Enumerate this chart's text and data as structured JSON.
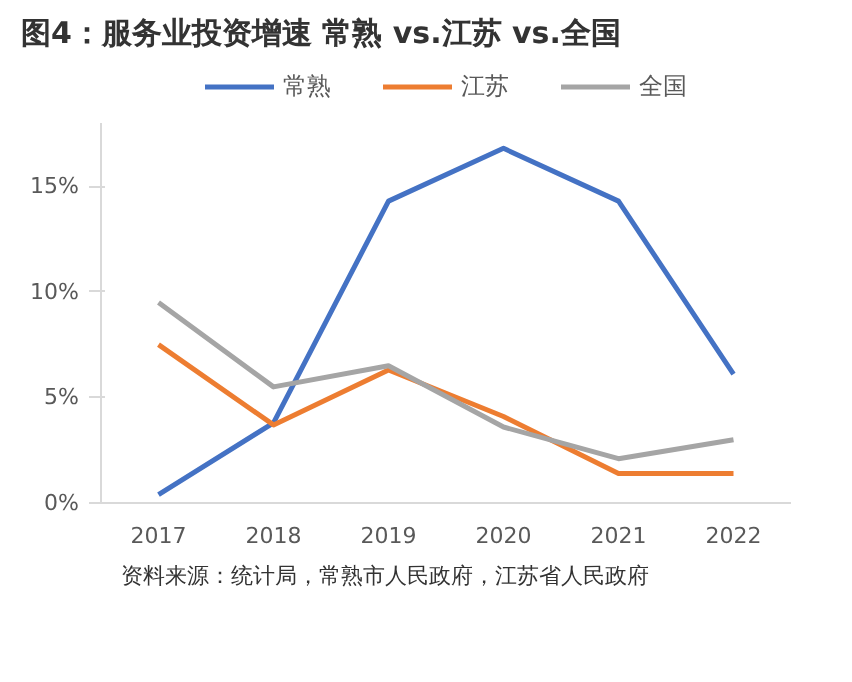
{
  "chart_data": {
    "type": "line",
    "title": "图4：服务业投资增速 常熟 vs.江苏 vs.全国",
    "categories": [
      "2017",
      "2018",
      "2019",
      "2020",
      "2021",
      "2022"
    ],
    "series": [
      {
        "name": "常熟",
        "color": "#4472c4",
        "values": [
          0.4,
          3.8,
          14.3,
          16.8,
          14.3,
          6.1
        ]
      },
      {
        "name": "江苏",
        "color": "#ed7d31",
        "values": [
          7.5,
          3.7,
          6.3,
          4.1,
          1.4,
          1.4
        ]
      },
      {
        "name": "全国",
        "color": "#a5a5a5",
        "values": [
          9.5,
          5.5,
          6.5,
          3.6,
          2.1,
          3.0
        ]
      }
    ],
    "ylim": [
      0,
      18
    ],
    "yticks": [
      {
        "value": 0,
        "label": "0%"
      },
      {
        "value": 5,
        "label": "5%"
      },
      {
        "value": 10,
        "label": "10%"
      },
      {
        "value": 15,
        "label": "15%"
      }
    ],
    "grid": false,
    "legend": "top",
    "marker": "none",
    "line_style": "solid",
    "annotations": [
      "资料来源：统计局，常熟市人民政府，江苏省人民政府"
    ]
  }
}
